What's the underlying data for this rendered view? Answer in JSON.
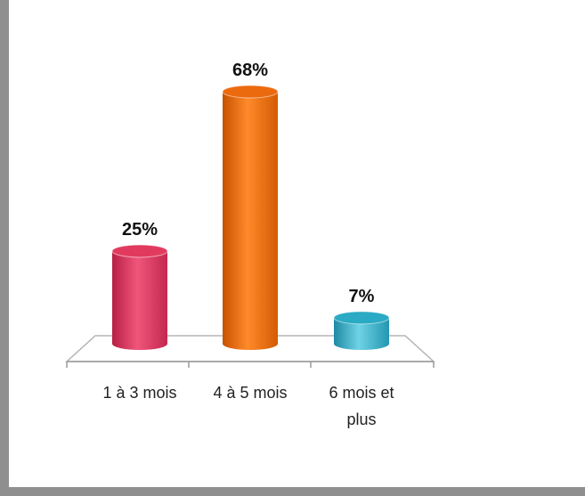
{
  "chart_data": {
    "type": "bar",
    "title": "",
    "xlabel": "",
    "ylabel": "",
    "categories": [
      "1 à 3 mois",
      "4 à 5 mois",
      "6 mois et plus"
    ],
    "category_lines": [
      [
        "1 à 3 mois"
      ],
      [
        "4 à 5 mois"
      ],
      [
        "6 mois et",
        "plus"
      ]
    ],
    "values": [
      25,
      68,
      7
    ],
    "value_labels": [
      "25%",
      "68%",
      "7%"
    ],
    "ylim": [
      0,
      68
    ],
    "grid": false,
    "legend": "none",
    "style": "3d-cylinder",
    "colors": [
      "#e23a5e",
      "#ec6a0e",
      "#2aaac4"
    ]
  }
}
